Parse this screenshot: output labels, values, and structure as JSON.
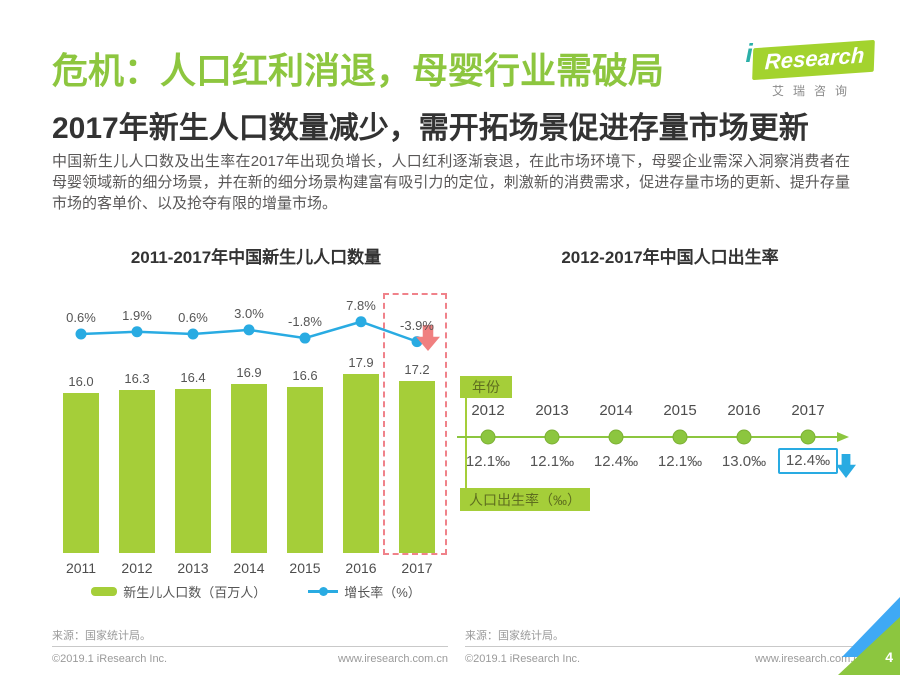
{
  "header": {
    "title": "危机：人口红利消退，母婴行业需破局",
    "subtitle": "2017年新生人口数量减少，需开拓场景促进存量市场更新",
    "paragraph": "中国新生儿人口数及出生率在2017年出现负增长，人口红利逐渐衰退，在此市场环境下，母婴企业需深入洞察消费者在母婴领域新的细分场景，并在新的细分场景构建富有吸引力的定位，刺激新的消费需求，促进存量市场的更新、提升存量市场的客单价、以及抢夺有限的增量市场。"
  },
  "logo": {
    "brand_i": "i",
    "brand": "Research",
    "chinese": "艾瑞咨询"
  },
  "colors": {
    "title_green": "#8DC63F",
    "bar_green": "#A5CE39",
    "line_blue": "#29ABE2",
    "highlight_red": "#F0828A",
    "corner_blue": "#3FA9F5"
  },
  "chart_data": [
    {
      "type": "bar",
      "title": "2011-2017年中国新生儿人口数量",
      "categories": [
        "2011",
        "2012",
        "2013",
        "2014",
        "2015",
        "2016",
        "2017"
      ],
      "series": [
        {
          "name": "新生儿人口数（百万人）",
          "type": "bar",
          "values": [
            16.0,
            16.3,
            16.4,
            16.9,
            16.6,
            17.9,
            17.2
          ]
        },
        {
          "name": "增长率（%）",
          "type": "line",
          "values": [
            0.6,
            1.9,
            0.6,
            3.0,
            -1.8,
            7.8,
            -3.9
          ]
        }
      ],
      "bar_labels": [
        "16.0",
        "16.3",
        "16.4",
        "16.9",
        "16.6",
        "17.9",
        "17.2"
      ],
      "line_labels": [
        "0.6%",
        "1.9%",
        "0.6%",
        "3.0%",
        "-1.8%",
        "7.8%",
        "-3.9%"
      ],
      "highlight_category": "2017",
      "ylim": [
        0,
        18.5
      ],
      "legend_position": "bottom",
      "source": "来源：国家统计局。"
    },
    {
      "type": "line",
      "title": "2012-2017年中国人口出生率",
      "axis_label_top": "年份",
      "axis_label_bottom": "人口出生率（‰）",
      "categories": [
        "2012",
        "2013",
        "2014",
        "2015",
        "2016",
        "2017"
      ],
      "values": [
        12.1,
        12.1,
        12.4,
        12.1,
        13.0,
        12.4
      ],
      "value_labels": [
        "12.1‰",
        "12.1‰",
        "12.4‰",
        "12.1‰",
        "13.0‰",
        "12.4‰"
      ],
      "highlight_index": 5,
      "source": "来源：国家统计局。"
    }
  ],
  "footer": {
    "copyright": "©2019.1 iResearch Inc.",
    "website": "www.iresearch.com.cn",
    "page_number": "4"
  }
}
